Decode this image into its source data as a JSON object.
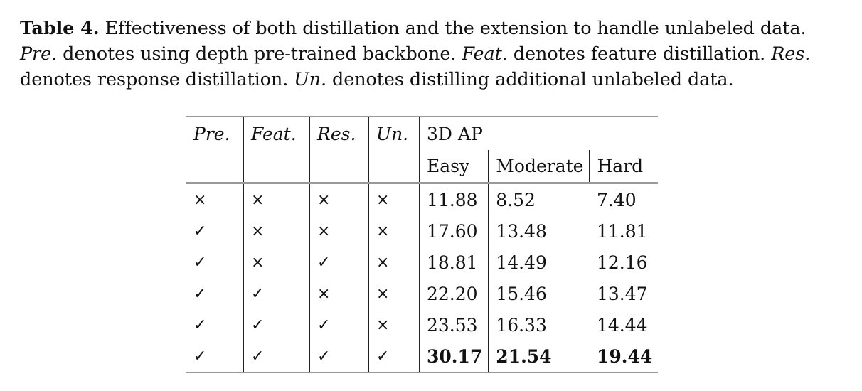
{
  "caption": {
    "label": "Table 4.",
    "sentence1": " Effectiveness of both distillation and the extension to handle unlabeled data.",
    "pre_term": "Pre.",
    "pre_desc": " denotes using depth pre-trained backbone. ",
    "feat_term": "Feat.",
    "feat_desc": " denotes feature distillation. ",
    "res_term": "Res.",
    "res_desc": " denotes response distillation. ",
    "un_term": "Un.",
    "un_desc": " denotes distilling additional unlabeled data."
  },
  "table": {
    "headers": {
      "pre": "Pre.",
      "feat": "Feat.",
      "res": "Res.",
      "un": "Un.",
      "group": "3D AP",
      "easy": "Easy",
      "moderate": "Moderate",
      "hard": "Hard"
    },
    "rows": [
      {
        "pre": "×",
        "feat": "×",
        "res": "×",
        "un": "×",
        "easy": "11.88",
        "moderate": "8.52",
        "hard": "7.40"
      },
      {
        "pre": "✓",
        "feat": "×",
        "res": "×",
        "un": "×",
        "easy": "17.60",
        "moderate": "13.48",
        "hard": "11.81"
      },
      {
        "pre": "✓",
        "feat": "×",
        "res": "✓",
        "un": "×",
        "easy": "18.81",
        "moderate": "14.49",
        "hard": "12.16"
      },
      {
        "pre": "✓",
        "feat": "✓",
        "res": "×",
        "un": "×",
        "easy": "22.20",
        "moderate": "15.46",
        "hard": "13.47"
      },
      {
        "pre": "✓",
        "feat": "✓",
        "res": "✓",
        "un": "×",
        "easy": "23.53",
        "moderate": "16.33",
        "hard": "14.44"
      },
      {
        "pre": "✓",
        "feat": "✓",
        "res": "✓",
        "un": "✓",
        "easy": "30.17",
        "moderate": "21.54",
        "hard": "19.44"
      }
    ]
  }
}
